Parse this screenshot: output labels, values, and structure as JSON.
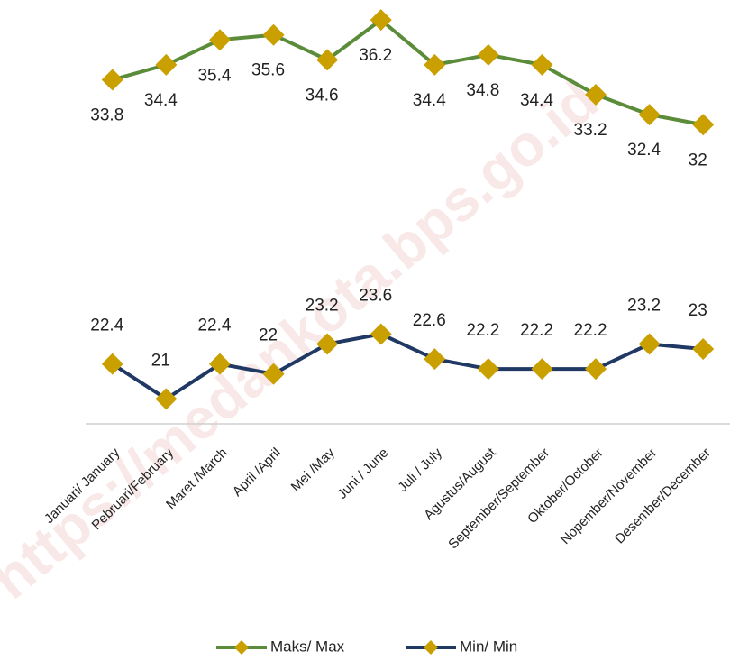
{
  "chart_data": {
    "type": "line",
    "categories": [
      "Januari/ January",
      "Pebruari/February",
      "Maret /March",
      "April /April",
      "Mei /May",
      "Juni / June",
      "Juli / July",
      "Agustus/August",
      "September/September",
      "Oktober/October",
      "Nopember/November",
      "Desember/December"
    ],
    "series": [
      {
        "name": "Maks/ Max",
        "color": "#5b8c3a",
        "marker_color": "#c9a000",
        "values": [
          33.8,
          34.4,
          35.4,
          35.6,
          34.6,
          36.2,
          34.4,
          34.8,
          34.4,
          33.2,
          32.4,
          32
        ]
      },
      {
        "name": "Min/ Min",
        "color": "#1f3864",
        "marker_color": "#c9a000",
        "values": [
          22.4,
          21,
          22.4,
          22,
          23.2,
          23.6,
          22.6,
          22.2,
          22.2,
          22.2,
          23.2,
          23
        ]
      }
    ],
    "ylim": [
      20,
      37
    ],
    "watermark": "https://medankota.bps.go.id"
  }
}
